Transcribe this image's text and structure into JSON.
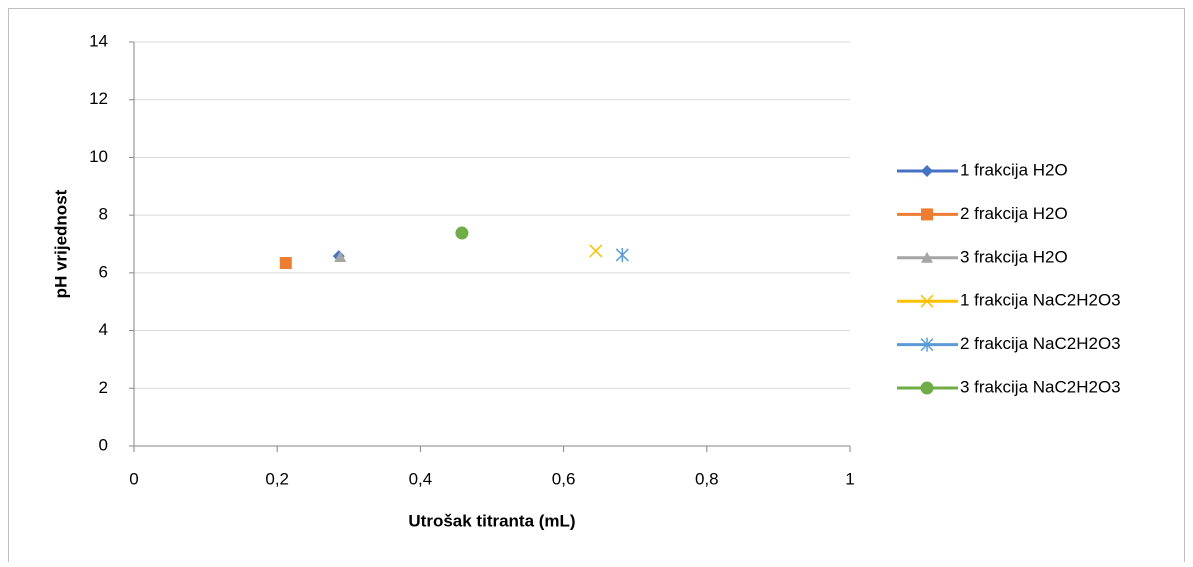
{
  "chart_data": {
    "type": "scatter",
    "xlabel": "Utrošak titranta (mL)",
    "ylabel": "pH vrijednost",
    "xlim": [
      0,
      1
    ],
    "xticks": [
      0,
      {
        "value": 0.2,
        "label": "0,2"
      },
      {
        "value": 0.4,
        "label": "0,4"
      },
      {
        "value": 0.6,
        "label": "0,6"
      },
      {
        "value": 0.8,
        "label": "0,8"
      },
      1
    ],
    "ylim": [
      0,
      14
    ],
    "yticks": [
      0,
      2,
      4,
      6,
      8,
      10,
      12,
      14
    ],
    "grid": true,
    "legend": "right",
    "series": [
      {
        "name": "1 frakcija H2O",
        "color": "#4472c4",
        "marker": "diamond",
        "x": [
          0.286
        ],
        "values": [
          6.58
        ]
      },
      {
        "name": "2 frakcija H2O",
        "color": "#ed7d31",
        "marker": "square",
        "x": [
          0.212
        ],
        "values": [
          6.34
        ]
      },
      {
        "name": "3 frakcija H2O",
        "color": "#a5a5a5",
        "marker": "triangle",
        "x": [
          0.288
        ],
        "values": [
          6.55
        ]
      },
      {
        "name": "1 frakcija NaC2H2O3",
        "color": "#ffc000",
        "marker": "x",
        "x": [
          0.645
        ],
        "values": [
          6.76
        ]
      },
      {
        "name": "2 frakcija NaC2H2O3",
        "color": "#5b9bd5",
        "marker": "star",
        "x": [
          0.682
        ],
        "values": [
          6.62
        ]
      },
      {
        "name": "3 frakcija NaC2H2O3",
        "color": "#70ad47",
        "marker": "circle",
        "x": [
          0.458
        ],
        "values": [
          7.38
        ]
      }
    ]
  }
}
